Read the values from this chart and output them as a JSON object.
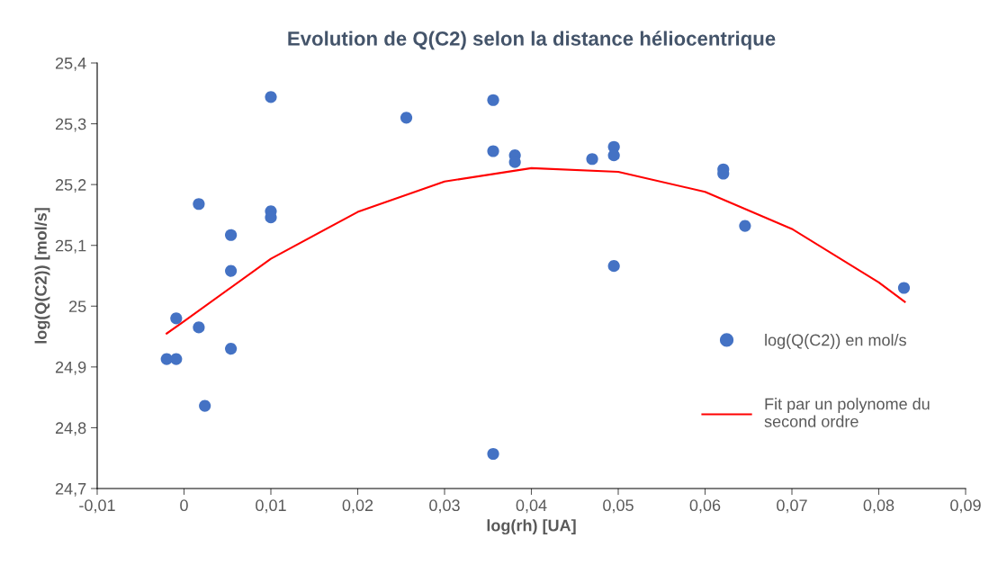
{
  "chart_data": {
    "type": "scatter",
    "title": "Evolution de Q(C2) selon la distance héliocentrique",
    "xlabel": "log(rh) [UA]",
    "ylabel": "log(Q(C2)) [mol/s]",
    "series": [
      {
        "name": "log(Q(C2)) en mol/s",
        "color": "#4472c4",
        "marker": "circle",
        "x": [
          -0.002,
          -0.0009,
          -0.0009,
          0.0017,
          0.0017,
          0.0024,
          0.0054,
          0.0054,
          0.0054,
          0.01,
          0.01,
          0.01,
          0.0256,
          0.0356,
          0.0356,
          0.0356,
          0.0381,
          0.0381,
          0.047,
          0.0495,
          0.0495,
          0.0495,
          0.0621,
          0.0621,
          0.0646,
          0.0829
        ],
        "values": [
          24.913,
          24.913,
          24.98,
          25.168,
          24.965,
          24.836,
          25.117,
          25.058,
          24.93,
          25.344,
          25.156,
          25.146,
          25.31,
          25.339,
          25.255,
          24.757,
          25.248,
          25.237,
          25.242,
          25.262,
          25.248,
          25.066,
          25.225,
          25.218,
          25.132,
          25.03
        ]
      },
      {
        "name": "Fit par un polynome du second ordre",
        "type": "line",
        "color": "#ff0000",
        "marker": "none",
        "line_style": "solid",
        "x": [
          -0.002,
          0,
          0.01,
          0.02,
          0.03,
          0.04,
          0.05,
          0.06,
          0.07,
          0.08,
          0.083
        ],
        "values": [
          24.955,
          24.975,
          25.078,
          25.155,
          25.205,
          25.227,
          25.221,
          25.188,
          25.127,
          25.039,
          25.007
        ]
      }
    ],
    "xlim": [
      -0.01,
      0.09
    ],
    "xticks": [
      {
        "value": -0.01,
        "label": "-0,01"
      },
      0,
      {
        "value": 0.01,
        "label": "0,01"
      },
      {
        "value": 0.02,
        "label": "0,02"
      },
      {
        "value": 0.03,
        "label": "0,03"
      },
      {
        "value": 0.04,
        "label": "0,04"
      },
      {
        "value": 0.05,
        "label": "0,05"
      },
      {
        "value": 0.06,
        "label": "0,06"
      },
      {
        "value": 0.07,
        "label": "0,07"
      },
      {
        "value": 0.08,
        "label": "0,08"
      },
      {
        "value": 0.09,
        "label": "0,09"
      }
    ],
    "ylim": [
      24.7,
      25.4
    ],
    "yticks": [
      {
        "value": 24.7,
        "label": "24,7"
      },
      {
        "value": 24.8,
        "label": "24,8"
      },
      {
        "value": 24.9,
        "label": "24,9"
      },
      25,
      {
        "value": 25.1,
        "label": "25,1"
      },
      {
        "value": 25.2,
        "label": "25,2"
      },
      {
        "value": 25.3,
        "label": "25,3"
      },
      {
        "value": 25.4,
        "label": "25,4"
      }
    ],
    "grid": false,
    "legend": "right"
  }
}
